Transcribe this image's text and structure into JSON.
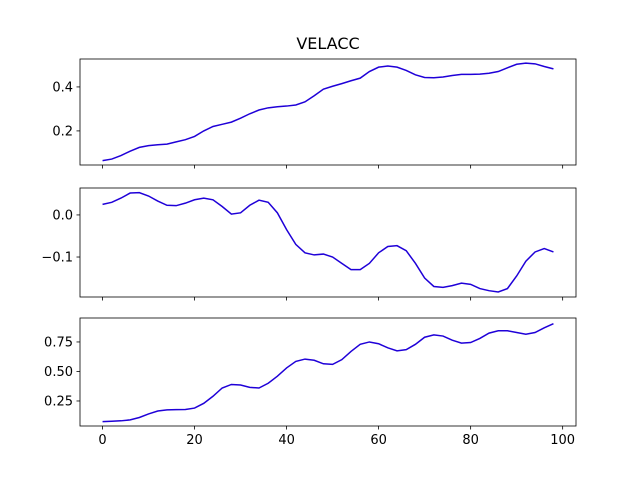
{
  "chart_data": [
    {
      "type": "line",
      "title": "VELACC",
      "color": "#1f00d8",
      "x": [
        0,
        2,
        4,
        6,
        8,
        10,
        12,
        14,
        16,
        18,
        20,
        22,
        24,
        26,
        28,
        30,
        32,
        34,
        36,
        38,
        40,
        42,
        44,
        46,
        48,
        50,
        52,
        54,
        56,
        58,
        60,
        62,
        64,
        66,
        68,
        70,
        72,
        74,
        76,
        78,
        80,
        82,
        84,
        86,
        88,
        90,
        92,
        94,
        96,
        98
      ],
      "values": [
        0.065,
        0.072,
        0.088,
        0.108,
        0.125,
        0.133,
        0.137,
        0.14,
        0.15,
        0.16,
        0.175,
        0.2,
        0.22,
        0.23,
        0.24,
        0.258,
        0.278,
        0.295,
        0.305,
        0.31,
        0.313,
        0.318,
        0.332,
        0.36,
        0.39,
        0.403,
        0.415,
        0.428,
        0.44,
        0.47,
        0.49,
        0.495,
        0.49,
        0.475,
        0.455,
        0.443,
        0.442,
        0.445,
        0.452,
        0.457,
        0.457,
        0.458,
        0.462,
        0.47,
        0.487,
        0.503,
        0.508,
        0.505,
        0.493,
        0.482
      ],
      "xlim": [
        -4.9,
        102.9
      ],
      "xticks": [
        0,
        20,
        40,
        60,
        80,
        100
      ],
      "x_tick_labels": false,
      "ylim": [
        0.045,
        0.527
      ],
      "yticks": [
        0.2,
        0.4
      ]
    },
    {
      "type": "line",
      "color": "#1f00d8",
      "x": [
        0,
        2,
        4,
        6,
        8,
        10,
        12,
        14,
        16,
        18,
        20,
        22,
        24,
        26,
        28,
        30,
        32,
        34,
        36,
        38,
        40,
        42,
        44,
        46,
        48,
        50,
        52,
        54,
        56,
        58,
        60,
        62,
        64,
        66,
        68,
        70,
        72,
        74,
        76,
        78,
        80,
        82,
        84,
        86,
        88,
        90,
        92,
        94,
        96,
        98
      ],
      "values": [
        0.025,
        0.03,
        0.04,
        0.052,
        0.053,
        0.045,
        0.033,
        0.023,
        0.022,
        0.028,
        0.036,
        0.04,
        0.036,
        0.02,
        0.002,
        0.005,
        0.023,
        0.035,
        0.03,
        0.005,
        -0.035,
        -0.07,
        -0.09,
        -0.095,
        -0.093,
        -0.1,
        -0.115,
        -0.13,
        -0.13,
        -0.115,
        -0.09,
        -0.075,
        -0.073,
        -0.085,
        -0.115,
        -0.15,
        -0.17,
        -0.172,
        -0.168,
        -0.162,
        -0.165,
        -0.175,
        -0.18,
        -0.183,
        -0.175,
        -0.145,
        -0.11,
        -0.088,
        -0.08,
        -0.088
      ],
      "xlim": [
        -4.9,
        102.9
      ],
      "xticks": [
        0,
        20,
        40,
        60,
        80,
        100
      ],
      "x_tick_labels": false,
      "ylim": [
        -0.195,
        0.064
      ],
      "yticks": [
        {
          "value": -0.1,
          "label": "−0.1"
        },
        {
          "value": 0,
          "label": "0.0"
        }
      ]
    },
    {
      "type": "line",
      "color": "#1f00d8",
      "x": [
        0,
        2,
        4,
        6,
        8,
        10,
        12,
        14,
        16,
        18,
        20,
        22,
        24,
        26,
        28,
        30,
        32,
        34,
        36,
        38,
        40,
        42,
        44,
        46,
        48,
        50,
        52,
        54,
        56,
        58,
        60,
        62,
        64,
        66,
        68,
        70,
        72,
        74,
        76,
        78,
        80,
        82,
        84,
        86,
        88,
        90,
        92,
        94,
        96,
        98
      ],
      "values": [
        0.075,
        0.078,
        0.082,
        0.09,
        0.11,
        0.14,
        0.165,
        0.175,
        0.177,
        0.178,
        0.19,
        0.23,
        0.29,
        0.36,
        0.39,
        0.385,
        0.365,
        0.36,
        0.4,
        0.46,
        0.53,
        0.585,
        0.605,
        0.595,
        0.565,
        0.56,
        0.6,
        0.67,
        0.73,
        0.75,
        0.735,
        0.7,
        0.675,
        0.685,
        0.73,
        0.79,
        0.81,
        0.8,
        0.765,
        0.74,
        0.745,
        0.78,
        0.825,
        0.845,
        0.845,
        0.83,
        0.815,
        0.83,
        0.87,
        0.905
      ],
      "xlim": [
        -4.9,
        102.9
      ],
      "xticks": [
        0,
        20,
        40,
        60,
        80,
        100
      ],
      "ylim": [
        0.038,
        0.953
      ],
      "yticks": [
        0.25,
        {
          "value": 0.5,
          "label": "0.50"
        },
        0.75
      ]
    }
  ]
}
